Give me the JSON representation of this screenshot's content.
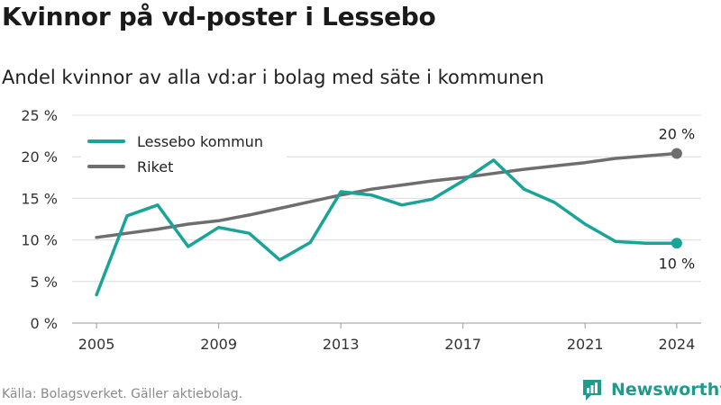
{
  "title": "Kvinnor på vd-poster i Lessebo",
  "subtitle": "Andel kvinnor av alla vd:ar i bolag med säte i kommunen",
  "source": "Källa: Bolagsverket. Gäller aktiebolag.",
  "logo": {
    "text": "Newsworthy",
    "icon": "newsworthy-logo-icon"
  },
  "chart_data": {
    "type": "line",
    "title": "Kvinnor på vd-poster i Lessebo",
    "subtitle": "Andel kvinnor av alla vd:ar i bolag med säte i kommunen",
    "x": [
      2005,
      2006,
      2007,
      2008,
      2009,
      2010,
      2011,
      2012,
      2013,
      2014,
      2015,
      2016,
      2017,
      2018,
      2019,
      2020,
      2021,
      2022,
      2023,
      2024
    ],
    "xlim": [
      2004.2,
      2024.8
    ],
    "ylim": [
      0,
      25
    ],
    "x_ticks": [
      {
        "value": 2005,
        "label": "2005"
      },
      {
        "value": 2009,
        "label": "2009"
      },
      {
        "value": 2013,
        "label": "2013"
      },
      {
        "value": 2017,
        "label": "2017"
      },
      {
        "value": 2021,
        "label": "2021"
      },
      {
        "value": 2024,
        "label": "2024"
      }
    ],
    "y_ticks": [
      {
        "value": 0,
        "label": "0 %"
      },
      {
        "value": 5,
        "label": "5 %"
      },
      {
        "value": 10,
        "label": "10 %"
      },
      {
        "value": 15,
        "label": "15 %"
      },
      {
        "value": 20,
        "label": "20 %"
      },
      {
        "value": 25,
        "label": "25 %"
      }
    ],
    "grid": true,
    "legend_position": "top-left",
    "series": [
      {
        "name": "Lessebo kommun",
        "color": "#1aa397",
        "values": [
          3.4,
          12.9,
          14.2,
          9.2,
          11.5,
          10.8,
          7.6,
          9.7,
          15.8,
          15.4,
          14.2,
          14.9,
          17.1,
          19.6,
          16.1,
          14.5,
          11.9,
          9.8,
          9.6,
          9.6
        ],
        "end_label": "10 %",
        "end_label_position": "below"
      },
      {
        "name": "Riket",
        "color": "#6e6e6e",
        "values": [
          10.3,
          10.8,
          11.3,
          11.9,
          12.3,
          13.0,
          13.8,
          14.6,
          15.4,
          16.1,
          16.6,
          17.1,
          17.5,
          18.0,
          18.5,
          18.9,
          19.3,
          19.8,
          20.1,
          20.4
        ],
        "end_label": "20 %",
        "end_label_position": "above"
      }
    ]
  }
}
